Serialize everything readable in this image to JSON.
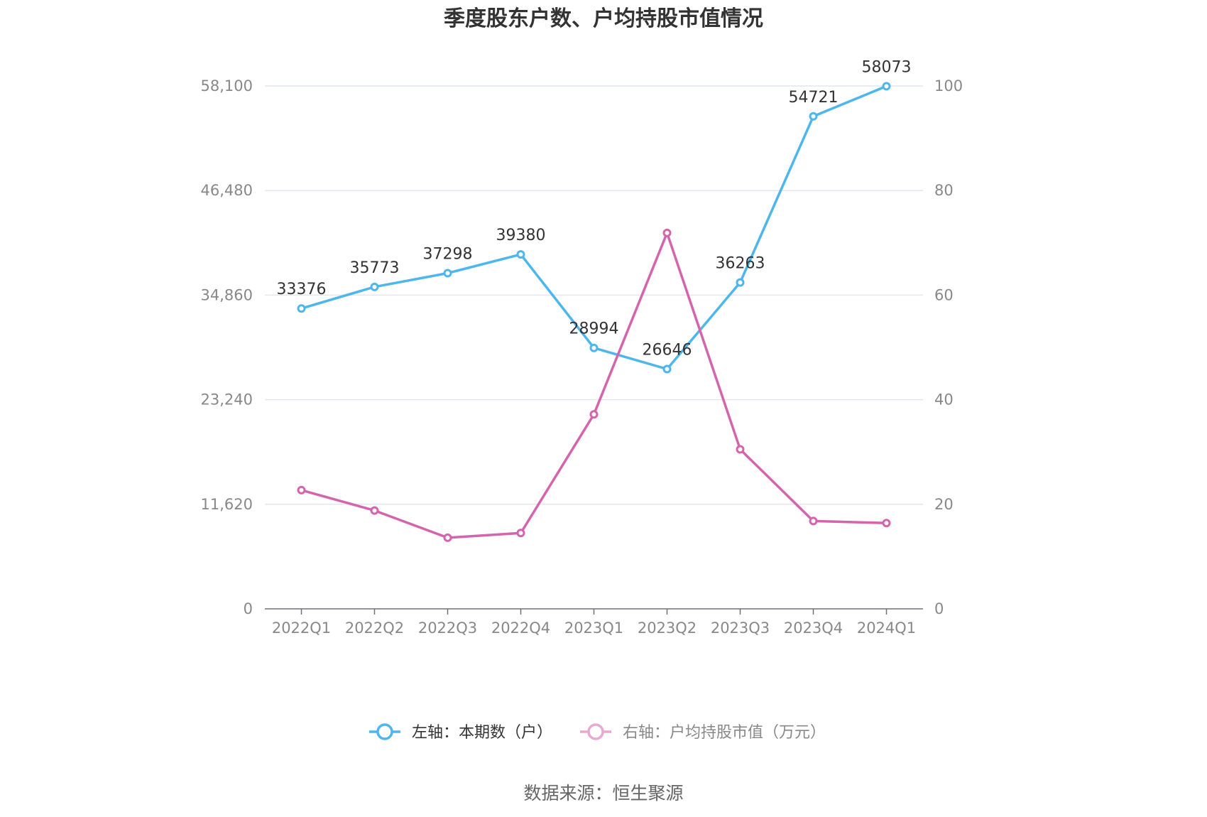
{
  "chart_data": {
    "type": "line",
    "title": "季度股东户数、户均持股市值情况",
    "categories": [
      "2022Q1",
      "2022Q2",
      "2022Q3",
      "2022Q4",
      "2023Q1",
      "2023Q2",
      "2023Q3",
      "2023Q4",
      "2024Q1"
    ],
    "series": [
      {
        "name": "左轴：本期数（户）",
        "axis": "left",
        "color": "#4db6ec",
        "values": [
          33376,
          35773,
          37298,
          39380,
          28994,
          26646,
          36263,
          54721,
          58073
        ],
        "show_labels": true
      },
      {
        "name": "右轴：户均持股市值（万元）",
        "axis": "right",
        "color": "#d465ad",
        "legend_color": "#e8a9d1",
        "values": [
          22.7,
          18.8,
          13.6,
          14.5,
          37.2,
          71.9,
          30.5,
          16.8,
          16.4
        ],
        "show_labels": false
      }
    ],
    "y_left": {
      "ylim": [
        0,
        58100
      ],
      "ticks": [
        "0",
        "11,620",
        "23,240",
        "34,860",
        "46,480",
        "58,100"
      ]
    },
    "y_right": {
      "ylim": [
        0,
        100
      ],
      "ticks": [
        "0",
        "20",
        "40",
        "60",
        "80",
        "100"
      ]
    },
    "grid": true,
    "legend_position": "bottom"
  },
  "source_text": "数据来源：恒生聚源"
}
